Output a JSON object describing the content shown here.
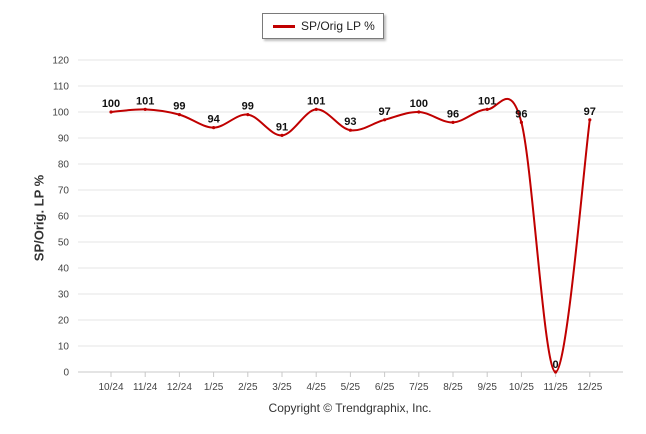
{
  "chart_data": {
    "type": "line",
    "categories": [
      "10/24",
      "11/24",
      "12/24",
      "1/25",
      "2/25",
      "3/25",
      "4/25",
      "5/25",
      "6/25",
      "7/25",
      "8/25",
      "9/25",
      "10/25",
      "11/25",
      "12/25"
    ],
    "series": [
      {
        "name": "SP/Orig LP %",
        "values": [
          100,
          101,
          99,
          94,
          99,
          91,
          101,
          93,
          97,
          100,
          96,
          101,
          96,
          0,
          97
        ],
        "color": "#c00000"
      }
    ],
    "data_labels": [
      "100",
      "101",
      "99",
      "94",
      "99",
      "91",
      "101",
      "93",
      "97",
      "100",
      "96",
      "101",
      "96",
      "0",
      "97"
    ],
    "ylabel": "SP/Orig. LP %",
    "xlabel": "",
    "ylim": [
      0,
      120
    ],
    "yticks": [
      0,
      10,
      20,
      30,
      40,
      50,
      60,
      70,
      80,
      90,
      100,
      110,
      120
    ],
    "grid": true,
    "legend": "top-center",
    "credit": "Copyright © Trendgraphix, Inc."
  }
}
